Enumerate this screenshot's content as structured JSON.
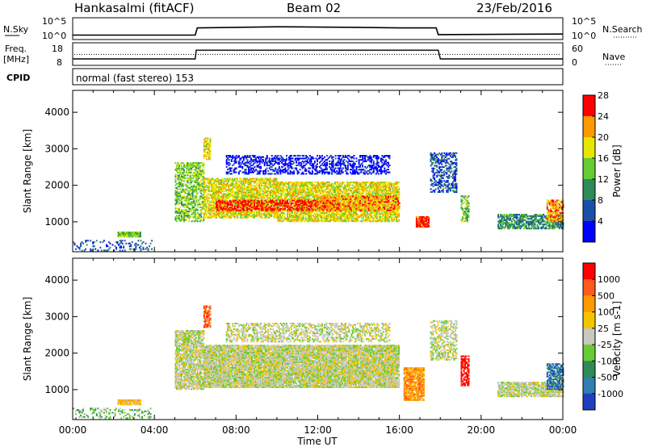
{
  "chart_data": {
    "type": "heatmap",
    "header": {
      "station": "Hankasalmi (fitACF)",
      "beam": "Beam 02",
      "date": "23/Feb/2016"
    },
    "time_axis": {
      "label": "Time UT",
      "ticks": [
        "00:00",
        "04:00",
        "08:00",
        "12:00",
        "16:00",
        "20:00",
        "00:00"
      ],
      "range_hours": [
        0,
        24
      ]
    },
    "nsky_strip": {
      "left_label": "N.Sky",
      "right_label": "N.Search",
      "left_ticks": [
        "10^5",
        "10^0"
      ],
      "right_ticks": [
        "10^5",
        "10^0"
      ],
      "profile": [
        [
          0,
          0.25
        ],
        [
          6,
          0.25
        ],
        [
          6.1,
          0.9
        ],
        [
          10,
          1.0
        ],
        [
          14,
          0.95
        ],
        [
          16,
          0.9
        ],
        [
          17.8,
          0.9
        ],
        [
          17.9,
          0.3
        ],
        [
          24,
          0.35
        ]
      ]
    },
    "freq_strip": {
      "left_label": "Freq.",
      "left_unit": "[MHz]",
      "right_label": "Nave",
      "left_ticks": [
        "18",
        "8"
      ],
      "right_ticks": [
        "60",
        "0"
      ],
      "freq_line": [
        [
          0,
          0.25
        ],
        [
          6,
          0.25
        ],
        [
          6.05,
          0.7
        ],
        [
          17.9,
          0.7
        ],
        [
          18,
          0.25
        ],
        [
          24,
          0.25
        ]
      ],
      "nave_dotted_level": 0.9
    },
    "cpid": {
      "label": "CPID",
      "text": "normal (fast stereo) 153"
    },
    "panels": [
      {
        "name": "power",
        "ylabel": "Slant Range [km]",
        "yticks": [
          "1000",
          "2000",
          "3000",
          "4000"
        ],
        "ylim": [
          180,
          4600
        ],
        "colorbar": {
          "label": "Power [dB]",
          "ticks": [
            "4",
            "8",
            "12",
            "16",
            "20",
            "24",
            "28"
          ],
          "colors": [
            "#0000ff",
            "#1a4fa8",
            "#2e8b57",
            "#66cc33",
            "#e6e600",
            "#ff9900",
            "#ff0000"
          ]
        },
        "regions": [
          {
            "t0": 0.0,
            "t1": 3.9,
            "r0": 200,
            "r1": 500,
            "level": 1,
            "density": 0.25
          },
          {
            "t0": 2.2,
            "t1": 3.3,
            "r0": 580,
            "r1": 700,
            "level": 3,
            "density": 0.9
          },
          {
            "t0": 5.0,
            "t1": 6.4,
            "r0": 1000,
            "r1": 2600,
            "level": 3,
            "density": 0.6
          },
          {
            "t0": 6.4,
            "t1": 10.0,
            "r0": 1100,
            "r1": 2200,
            "level": 4,
            "density": 0.75
          },
          {
            "t0": 10.0,
            "t1": 16.0,
            "r0": 1000,
            "r1": 2100,
            "level": 4,
            "density": 0.75
          },
          {
            "t0": 7.0,
            "t1": 13.0,
            "r0": 1300,
            "r1": 1600,
            "level": 6,
            "density": 0.65
          },
          {
            "t0": 12.0,
            "t1": 16.0,
            "r0": 1300,
            "r1": 1700,
            "level": 5,
            "density": 0.6
          },
          {
            "t0": 6.4,
            "t1": 6.7,
            "r0": 2700,
            "r1": 3300,
            "level": 4,
            "density": 0.7
          },
          {
            "t0": 7.5,
            "t1": 15.5,
            "r0": 2300,
            "r1": 2800,
            "level": 0,
            "density": 0.45
          },
          {
            "t0": 16.8,
            "t1": 17.4,
            "r0": 850,
            "r1": 1150,
            "level": 6,
            "density": 0.9
          },
          {
            "t0": 17.5,
            "t1": 18.8,
            "r0": 1800,
            "r1": 2900,
            "level": 1,
            "density": 0.45
          },
          {
            "t0": 19.0,
            "t1": 19.4,
            "r0": 1000,
            "r1": 1700,
            "level": 3,
            "density": 0.55
          },
          {
            "t0": 20.8,
            "t1": 24.0,
            "r0": 800,
            "r1": 1200,
            "level": 2,
            "density": 0.7
          },
          {
            "t0": 23.2,
            "t1": 24.0,
            "r0": 1000,
            "r1": 1600,
            "level": 5,
            "density": 0.7
          }
        ]
      },
      {
        "name": "velocity",
        "ylabel": "Slant Range [km]",
        "yticks": [
          "1000",
          "2000",
          "3000",
          "4000"
        ],
        "ylim": [
          180,
          4600
        ],
        "colorbar": {
          "label": "Velocity [m s-1]",
          "ticks": [
            "1000",
            "500",
            "100",
            "25",
            "-25",
            "-100",
            "-500",
            "-1000"
          ],
          "colors": [
            "#1f3fbf",
            "#2f7fb0",
            "#2e8b57",
            "#66cc33",
            "#c8c8c0",
            "#f5c400",
            "#ff9900",
            "#ff5a1e",
            "#ff0000"
          ]
        },
        "regions": [
          {
            "t0": 0.0,
            "t1": 3.9,
            "r0": 200,
            "r1": 500,
            "level": 3,
            "density": 0.25
          },
          {
            "t0": 2.2,
            "t1": 3.3,
            "r0": 580,
            "r1": 700,
            "level": 5,
            "density": 0.9
          },
          {
            "t0": 5.0,
            "t1": 6.4,
            "r0": 1000,
            "r1": 2600,
            "level": 4,
            "density": 0.8
          },
          {
            "t0": 6.4,
            "t1": 16.0,
            "r0": 1050,
            "r1": 2200,
            "level": 4,
            "density": 0.92
          },
          {
            "t0": 6.4,
            "t1": 6.7,
            "r0": 2700,
            "r1": 3300,
            "level": 7,
            "density": 0.7
          },
          {
            "t0": 7.5,
            "t1": 15.5,
            "r0": 2300,
            "r1": 2800,
            "level": 4,
            "density": 0.5
          },
          {
            "t0": 16.2,
            "t1": 17.2,
            "r0": 700,
            "r1": 1600,
            "level": 6,
            "density": 0.85
          },
          {
            "t0": 17.5,
            "t1": 18.8,
            "r0": 1800,
            "r1": 2900,
            "level": 4,
            "density": 0.5
          },
          {
            "t0": 19.0,
            "t1": 19.4,
            "r0": 1100,
            "r1": 1900,
            "level": 8,
            "density": 0.7
          },
          {
            "t0": 20.8,
            "t1": 24.0,
            "r0": 800,
            "r1": 1200,
            "level": 4,
            "density": 0.8
          },
          {
            "t0": 23.2,
            "t1": 24.0,
            "r0": 1000,
            "r1": 1700,
            "level": 1,
            "density": 0.7
          }
        ]
      }
    ]
  }
}
